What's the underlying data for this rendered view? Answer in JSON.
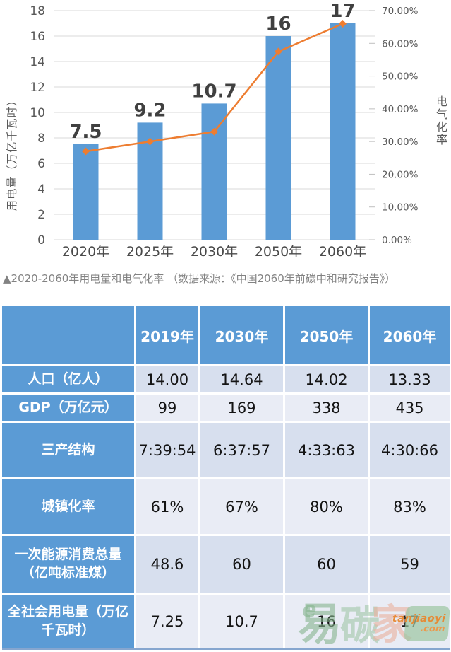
{
  "chart_data": {
    "type": "combo",
    "categories": [
      "2020年",
      "2025年",
      "2030年",
      "2050年",
      "2060年"
    ],
    "series": [
      {
        "name": "用电量",
        "type": "bar",
        "values": [
          7.5,
          9.2,
          10.7,
          16,
          17
        ],
        "labels": [
          "7.5",
          "9.2",
          "10.7",
          "16",
          "17"
        ],
        "color": "#5b9bd5",
        "axis": "left"
      },
      {
        "name": "电气化率",
        "type": "line",
        "values": [
          27,
          30,
          33,
          57.5,
          66
        ],
        "color": "#ed7d31",
        "axis": "right"
      }
    ],
    "title": "",
    "xlabel": "",
    "ylabel_left": "用电量（万亿千瓦时）",
    "ylabel_right": "电气化率",
    "ylim_left": [
      0,
      18
    ],
    "ylim_right": [
      0,
      70
    ],
    "left_ticks": [
      "0",
      "2",
      "4",
      "6",
      "8",
      "10",
      "12",
      "14",
      "16",
      "18"
    ],
    "right_ticks": [
      "0.00%",
      "10.00%",
      "20.00%",
      "30.00%",
      "40.00%",
      "50.00%",
      "60.00%",
      "70.00%"
    ],
    "grid": true,
    "legend": "none",
    "grid_color": "#d9d9d9",
    "tick_color": "#595959",
    "label_color": "#404040"
  },
  "caption": "▲2020-2060年用电量和电气化率 （数据来源：《中国2060年前碳中和研究报告》）",
  "table": {
    "header": [
      "",
      "2019年",
      "2030年",
      "2050年",
      "2060年"
    ],
    "rows": [
      {
        "label": "人口（亿人）",
        "values": [
          "14.00",
          "14.64",
          "14.02",
          "13.33"
        ]
      },
      {
        "label": "GDP（万亿元）",
        "values": [
          "99",
          "169",
          "338",
          "435"
        ]
      },
      {
        "label": "三产结构",
        "values": [
          "7:39:54",
          "6:37:57",
          "4:33:63",
          "4:30:66"
        ]
      },
      {
        "label": "城镇化率",
        "values": [
          "61%",
          "67%",
          "80%",
          "83%"
        ]
      },
      {
        "label": "一次能源消费总量（亿吨标准煤）",
        "values": [
          "48.6",
          "60",
          "60",
          "59"
        ]
      },
      {
        "label": "全社会用电量（万亿千瓦时）",
        "values": [
          "7.25",
          "10.7",
          "16",
          "17"
        ]
      }
    ],
    "header_color": "#5b9bd5",
    "band_dark": "#d7dfee",
    "band_light": "#e9ecf5"
  },
  "watermark": {
    "char1": "易",
    "char2": "碳",
    "char3": "家",
    "badge_top": "tanjiaoyi",
    "badge_bottom": ".com",
    "green": "#9ec6a3",
    "orange": "#e8872f"
  }
}
